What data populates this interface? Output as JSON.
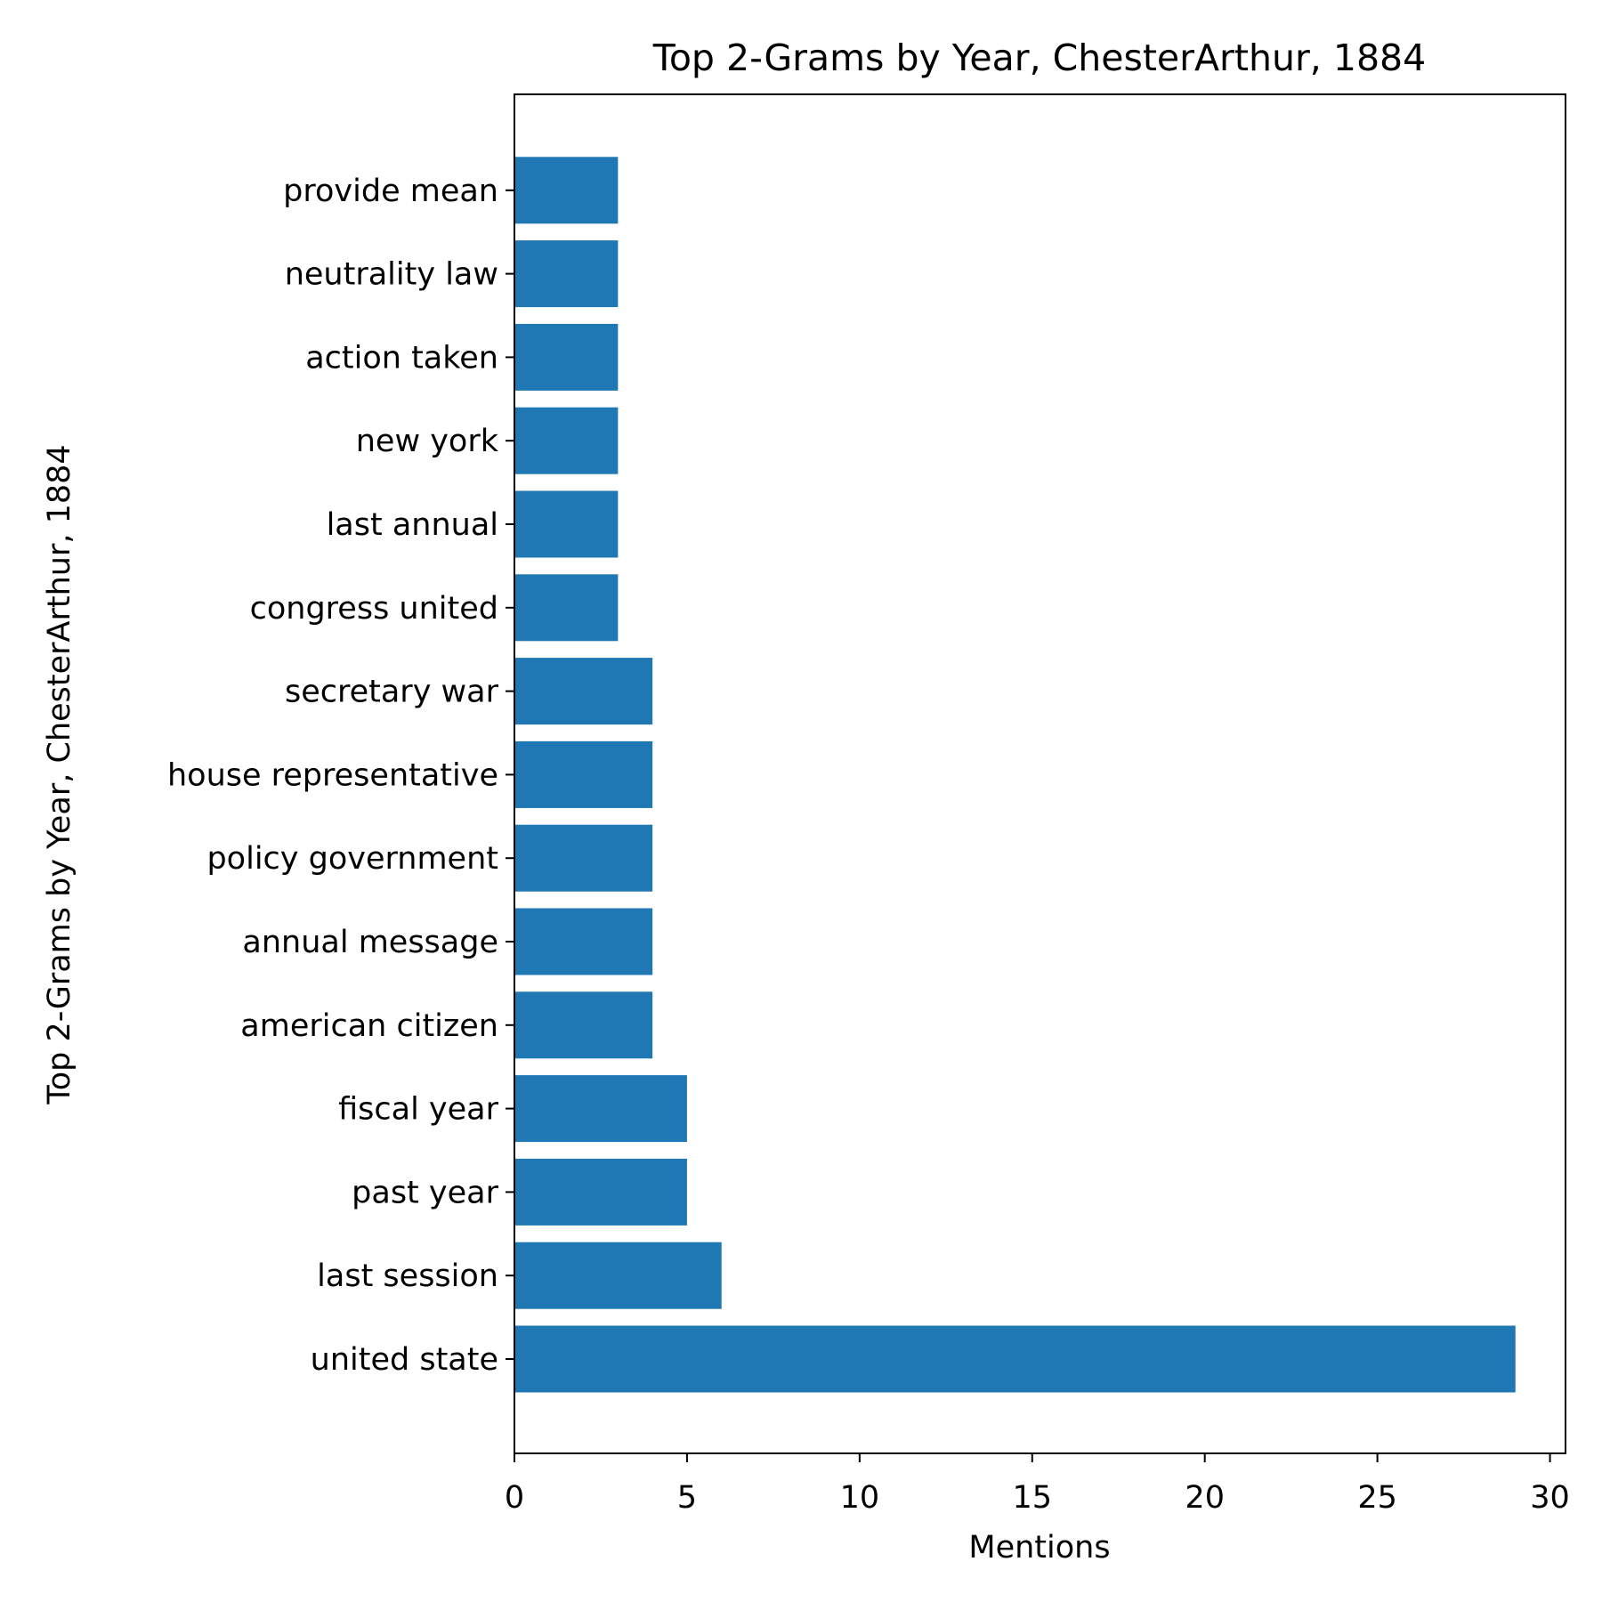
{
  "chart_data": {
    "type": "bar",
    "orientation": "horizontal",
    "title": "Top 2-Grams by Year, ChesterArthur, 1884",
    "xlabel": "Mentions",
    "ylabel": "Top 2-Grams by Year, ChesterArthur, 1884",
    "categories": [
      "united state",
      "last session",
      "past year",
      "fiscal year",
      "american citizen",
      "annual message",
      "policy government",
      "house representative",
      "secretary war",
      "congress united",
      "last annual",
      "new york",
      "action taken",
      "neutrality law",
      "provide mean"
    ],
    "values": [
      29,
      6,
      5,
      5,
      4,
      4,
      4,
      4,
      4,
      3,
      3,
      3,
      3,
      3,
      3
    ],
    "xlim": [
      0,
      30.45
    ],
    "xticks": [
      0,
      5,
      10,
      15,
      20,
      25,
      30
    ],
    "grid": false,
    "bar_color": "#1f77b4"
  }
}
